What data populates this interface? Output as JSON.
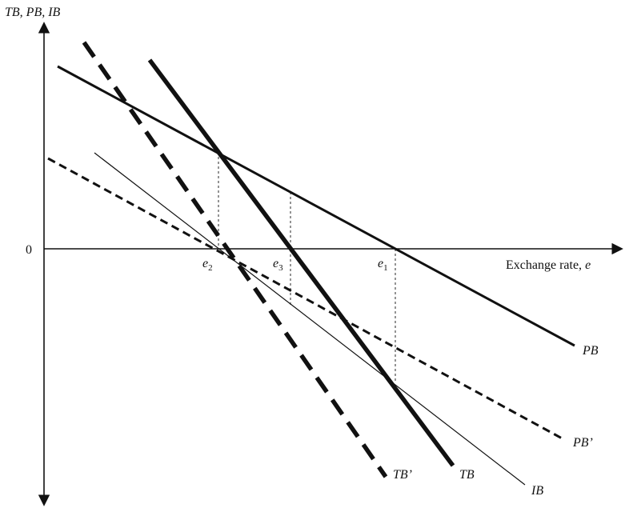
{
  "axes": {
    "y_label": "TB, PB, IB",
    "origin_label": "0",
    "x_label_text": "Exchange rate, ",
    "x_label_var": "e"
  },
  "points": {
    "e2": {
      "base": "e",
      "sub": "2"
    },
    "e3": {
      "base": "e",
      "sub": "3"
    },
    "e1": {
      "base": "e",
      "sub": "1"
    }
  },
  "curves": {
    "PB": "PB",
    "PB_prime": "PB’",
    "TB": "TB",
    "TB_prime": "TB’",
    "IB": "IB"
  },
  "colors": {
    "ink": "#111111",
    "background": "#ffffff"
  }
}
